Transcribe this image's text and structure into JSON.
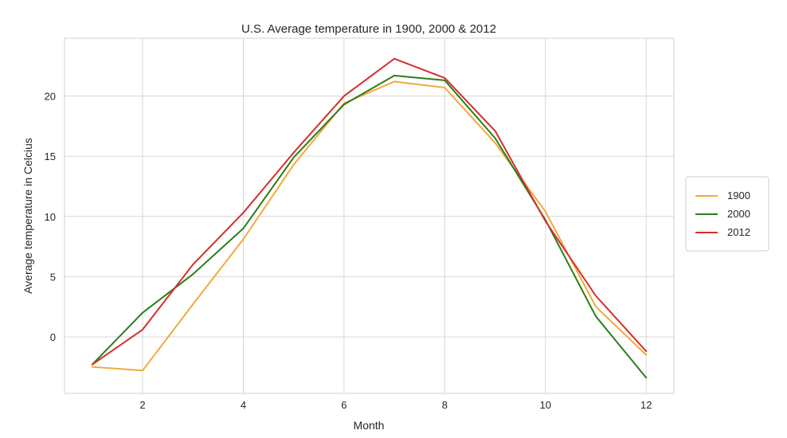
{
  "chart_data": {
    "type": "line",
    "title": "U.S. Average temperature in 1900, 2000 & 2012",
    "xlabel": "Month",
    "ylabel": "Average temperature in Celcius",
    "x": [
      1,
      2,
      3,
      4,
      5,
      6,
      7,
      8,
      9,
      10,
      11,
      12
    ],
    "xlim": [
      0.45,
      12.55
    ],
    "ylim": [
      -4.7,
      24.8
    ],
    "xticks": [
      2,
      4,
      6,
      8,
      10,
      12
    ],
    "yticks": [
      0,
      5,
      10,
      15,
      20
    ],
    "grid": true,
    "legend_position": "center-right-outside",
    "series": [
      {
        "name": "1900",
        "color": "#f2a93b",
        "values": [
          -2.5,
          -2.8,
          2.7,
          8.1,
          14.3,
          19.4,
          21.2,
          20.7,
          16.1,
          10.4,
          2.5,
          -1.5
        ]
      },
      {
        "name": "2000",
        "color": "#2a7d1a",
        "values": [
          -2.3,
          2.0,
          5.2,
          9.0,
          14.9,
          19.3,
          21.7,
          21.3,
          16.5,
          9.7,
          1.7,
          -3.4
        ]
      },
      {
        "name": "2012",
        "color": "#d62d2d",
        "values": [
          -2.3,
          0.6,
          6.0,
          10.3,
          15.3,
          20.0,
          23.1,
          21.5,
          17.1,
          9.6,
          3.4,
          -1.2
        ]
      }
    ]
  }
}
